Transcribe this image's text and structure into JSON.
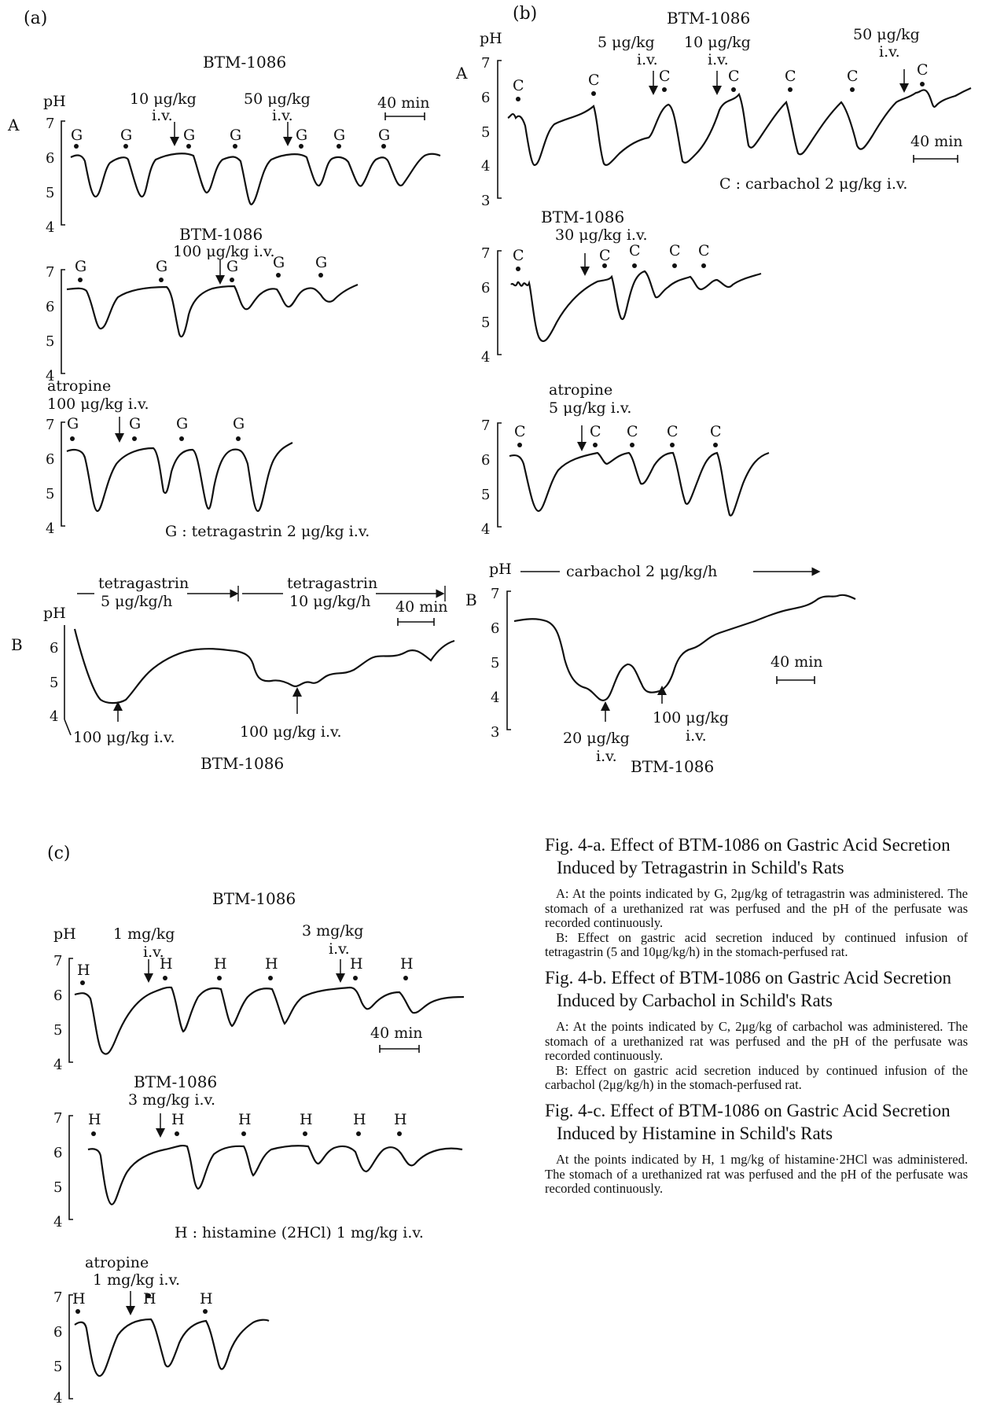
{
  "panels": {
    "a": {
      "tag": "(a)",
      "a_title": "BTM-1086",
      "row_A_letter": "A",
      "row_B_letter": "B",
      "ph_label": "pH",
      "dose1": "10 μg/kg",
      "dose2": "50 μg/kg",
      "iv": "i.v.",
      "scale": "40 min",
      "trace2_drug": "BTM-1086",
      "trace2_dose": "100 μg/kg i.v.",
      "trace3_drug": "atropine",
      "trace3_dose": "100 μg/kg i.v.",
      "stim_legend": "G : tetragastrin 2 μg/kg i.v.",
      "stim_letter": "G",
      "yticks": [
        "7",
        "6",
        "5",
        "4"
      ],
      "b_inf1_name": "tetragastrin",
      "b_inf1_rate": "5 μg/kg/h",
      "b_inf2_name": "tetragastrin",
      "b_inf2_rate": "10 μg/kg/h",
      "b_yticks": [
        "6",
        "5",
        "4"
      ],
      "b_dose1": "100 μg/kg i.v.",
      "b_dose2": "100 μg/kg i.v.",
      "b_drug": "BTM-1086"
    },
    "b": {
      "tag": "(b)",
      "a_title": "BTM-1086",
      "row_A_letter": "A",
      "row_B_letter": "B",
      "ph_label": "pH",
      "dose1": "5 μg/kg",
      "dose2": "10 μg/kg",
      "dose3": "50 μg/kg",
      "iv": "i.v.",
      "scale": "40 min",
      "stim_legend": "C : carbachol 2 μg/kg i.v.",
      "stim_letter": "C",
      "yticks": [
        "7",
        "6",
        "5",
        "4",
        "3"
      ],
      "trace2_drug": "BTM-1086",
      "trace2_dose": "30 μg/kg i.v.",
      "trace3_drug": "atropine",
      "trace3_dose": "5 μg/kg i.v.",
      "b_inf": "carbachol 2 μg/kg/h",
      "b_yticks": [
        "7",
        "6",
        "5",
        "4",
        "3"
      ],
      "b_dose1": "20 μg/kg",
      "b_dose1_iv": "i.v.",
      "b_dose2": "100 μg/kg",
      "b_dose2_iv": "i.v.",
      "b_drug": "BTM-1086"
    },
    "c": {
      "tag": "(c)",
      "a_title": "BTM-1086",
      "ph_label": "pH",
      "dose1": "1 mg/kg",
      "dose2": "3 mg/kg",
      "iv": "i.v.",
      "scale": "40 min",
      "stim_letter": "H",
      "yticks": [
        "7",
        "6",
        "5",
        "4"
      ],
      "trace2_drug": "BTM-1086",
      "trace2_dose": "3 mg/kg i.v.",
      "stim_legend": "H : histamine (2HCl) 1 mg/kg i.v.",
      "trace3_drug": "atropine",
      "trace3_dose": "1 mg/kg i.v."
    }
  },
  "captions": [
    {
      "title": "Fig. 4-a. Effect of BTM-1086 on Gastric Acid Secretion Induced by Tetragastrin in Schild's Rats",
      "body": [
        "A: At the points indicated by G, 2μg/kg of tetragastrin was administered. The stomach of a urethanized rat was perfused and the pH of the perfusate was recorded continuously.",
        "B: Effect on gastric acid secretion induced by continued infusion of tetragastrin (5 and 10μg/kg/h) in the stomach-perfused rat."
      ]
    },
    {
      "title": "Fig. 4-b. Effect of BTM-1086 on Gastric Acid Secretion Induced by Carbachol in Schild's Rats",
      "body": [
        "A: At the points indicated by C, 2μg/kg of carbachol was administered. The stomach of a urethanized rat was perfused and the pH of the perfusate was recorded continuously.",
        "B: Effect on gastric acid secretion induced by continued infusion of the carbachol (2μg/kg/h) in the stomach-perfused rat."
      ]
    },
    {
      "title": "Fig. 4-c. Effect of BTM-1086 on Gastric Acid Secretion Induced by Histamine in Schild's Rats",
      "body": [
        "At the points indicated by H, 1 mg/kg of histamine·2HCl was administered. The stomach of a urethanized rat was perfused and the pH of the perfusate was recorded continuously."
      ]
    }
  ]
}
